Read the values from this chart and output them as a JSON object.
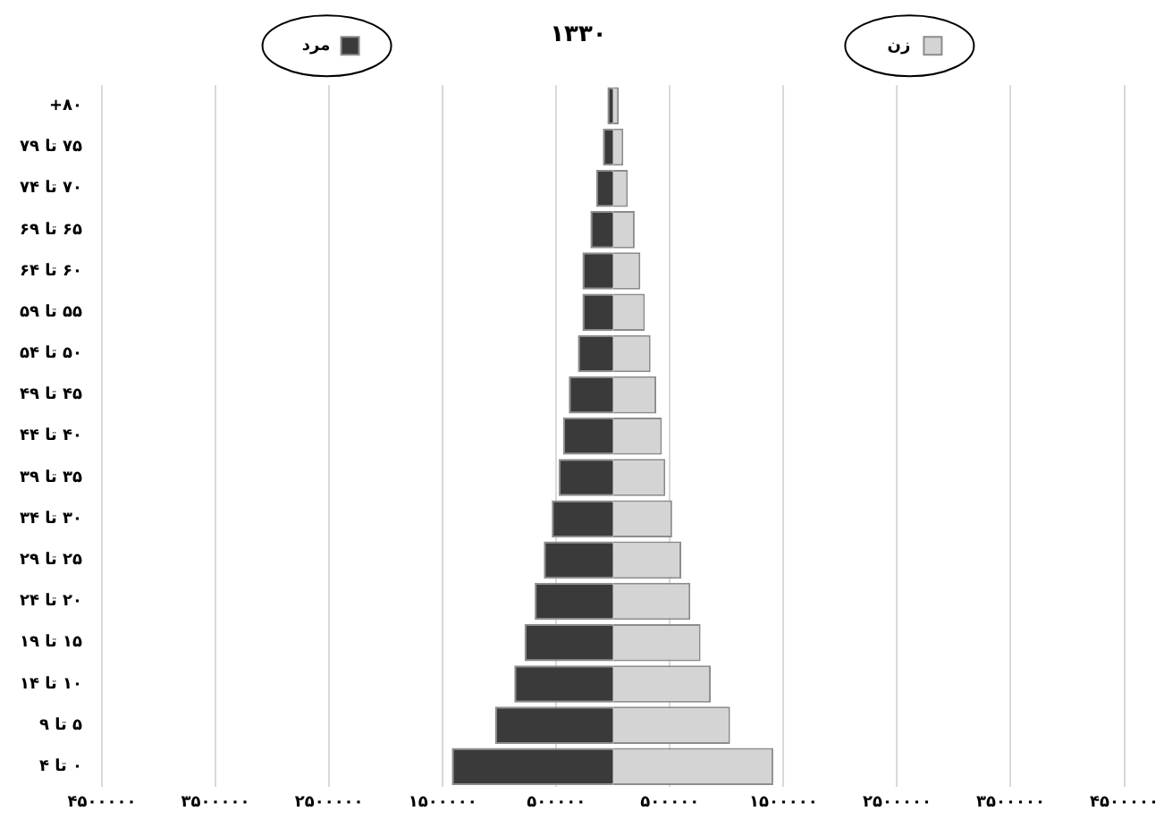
{
  "chart_data": {
    "type": "bar",
    "orientation": "horizontal",
    "stacked": true,
    "title": "۱۳۳۰",
    "grid": "x",
    "legend": "top",
    "categories": [
      "۸۰+",
      "۷۵ تا ۷۹",
      "۷۰ تا ۷۴",
      "۶۵ تا ۶۹",
      "۶۰ تا ۶۴",
      "۵۵ تا ۵۹",
      "۵۰ تا ۵۴",
      "۴۵ تا ۴۹",
      "۴۰ تا ۴۴",
      "۳۵ تا ۳۹",
      "۳۰ تا ۳۴",
      "۲۵ تا ۲۹",
      "۲۰ تا ۲۴",
      "۱۵ تا ۱۹",
      "۱۰ تا ۱۴",
      "۵ تا ۹",
      "۰ تا ۴"
    ],
    "series": [
      {
        "name": "مرد",
        "color": "#3a3a3a",
        "values": [
          -50000,
          -90000,
          -150000,
          -200000,
          -270000,
          -270000,
          -310000,
          -390000,
          -440000,
          -480000,
          -540000,
          -610000,
          -690000,
          -780000,
          -870000,
          -1040000,
          -1420000
        ]
      },
      {
        "name": "زن",
        "color": "#d4d4d4",
        "values": [
          50000,
          90000,
          130000,
          190000,
          240000,
          280000,
          330000,
          380000,
          430000,
          460000,
          520000,
          600000,
          680000,
          770000,
          860000,
          1030000,
          1410000
        ]
      }
    ],
    "xlim": [
      -4500000,
      4500000
    ],
    "xticks": [
      {
        "value": -4500000,
        "label": "۴۵۰۰۰۰۰"
      },
      {
        "value": -3500000,
        "label": "۳۵۰۰۰۰۰"
      },
      {
        "value": -2500000,
        "label": "۲۵۰۰۰۰۰"
      },
      {
        "value": -1500000,
        "label": "۱۵۰۰۰۰۰"
      },
      {
        "value": -500000,
        "label": "۵۰۰۰۰۰"
      },
      {
        "value": 500000,
        "label": "۵۰۰۰۰۰"
      },
      {
        "value": 1500000,
        "label": "۱۵۰۰۰۰۰"
      },
      {
        "value": 2500000,
        "label": "۲۵۰۰۰۰۰"
      },
      {
        "value": 3500000,
        "label": "۳۵۰۰۰۰۰"
      },
      {
        "value": 4500000,
        "label": "۴۵۰۰۰۰۰"
      }
    ]
  }
}
